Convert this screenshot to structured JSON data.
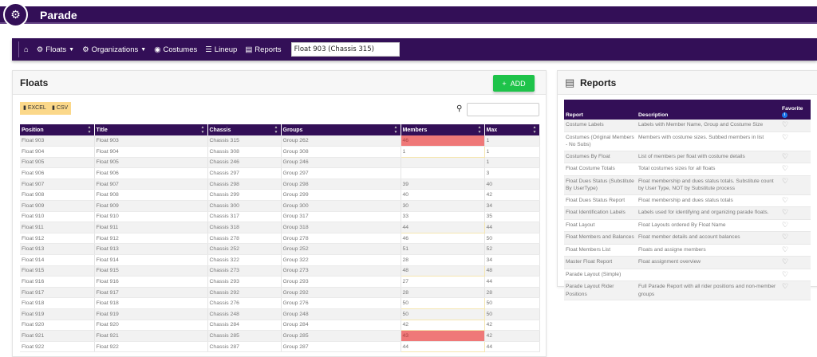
{
  "app": {
    "title": "Parade",
    "logo_icon": "tractor-icon",
    "brand_color": "#330f57"
  },
  "nav": {
    "items": [
      {
        "label": "",
        "icon": "home-icon"
      },
      {
        "label": "Floats",
        "icon": "tractor-icon",
        "dropdown": true
      },
      {
        "label": "Organizations",
        "icon": "tractor-icon",
        "dropdown": true
      },
      {
        "label": "Costumes",
        "icon": "mask-icon"
      },
      {
        "label": "Lineup",
        "icon": "list-icon"
      },
      {
        "label": "Reports",
        "icon": "report-icon"
      }
    ],
    "search_value": "Float 903 (Chassis 315)"
  },
  "floats": {
    "title": "Floats",
    "add_label": "ADD",
    "excel_label": "EXCEL",
    "csv_label": "CSV",
    "search_placeholder": "",
    "columns": [
      "Position",
      "Title",
      "Chassis",
      "Groups",
      "Members",
      "Max"
    ],
    "rows": [
      [
        "Float 903",
        "Float 903",
        "Chassis 315",
        "Group 262",
        "46",
        "1",
        "over"
      ],
      [
        "Float 904",
        "Float 904",
        "Chassis 308",
        "Group 308",
        "1",
        "1",
        "near"
      ],
      [
        "Float 905",
        "Float 905",
        "Chassis 246",
        "Group 246",
        "",
        "1",
        ""
      ],
      [
        "Float 906",
        "Float 906",
        "Chassis 297",
        "Group 297",
        "",
        "3",
        ""
      ],
      [
        "Float 907",
        "Float 907",
        "Chassis 298",
        "Group 298",
        "39",
        "40",
        ""
      ],
      [
        "Float 908",
        "Float 908",
        "Chassis 299",
        "Group 299",
        "40",
        "42",
        ""
      ],
      [
        "Float 909",
        "Float 909",
        "Chassis 300",
        "Group 300",
        "30",
        "34",
        ""
      ],
      [
        "Float 910",
        "Float 910",
        "Chassis 317",
        "Group 317",
        "33",
        "35",
        ""
      ],
      [
        "Float 911",
        "Float 911",
        "Chassis 318",
        "Group 318",
        "44",
        "44",
        "near"
      ],
      [
        "Float 912",
        "Float 912",
        "Chassis 278",
        "Group 278",
        "46",
        "50",
        ""
      ],
      [
        "Float 913",
        "Float 913",
        "Chassis 252",
        "Group 252",
        "51",
        "52",
        ""
      ],
      [
        "Float 914",
        "Float 914",
        "Chassis 322",
        "Group 322",
        "28",
        "34",
        ""
      ],
      [
        "Float 915",
        "Float 915",
        "Chassis 273",
        "Group 273",
        "48",
        "48",
        "near"
      ],
      [
        "Float 916",
        "Float 916",
        "Chassis 293",
        "Group 293",
        "27",
        "44",
        ""
      ],
      [
        "Float 917",
        "Float 917",
        "Chassis 292",
        "Group 292",
        "28",
        "28",
        ""
      ],
      [
        "Float 918",
        "Float 918",
        "Chassis 276",
        "Group 276",
        "50",
        "50",
        "near"
      ],
      [
        "Float 919",
        "Float 919",
        "Chassis 248",
        "Group 248",
        "50",
        "50",
        "near"
      ],
      [
        "Float 920",
        "Float 920",
        "Chassis 284",
        "Group 284",
        "42",
        "42",
        "near"
      ],
      [
        "Float 921",
        "Float 921",
        "Chassis 285",
        "Group 285",
        "43",
        "42",
        "over"
      ],
      [
        "Float 922",
        "Float 922",
        "Chassis 287",
        "Group 287",
        "44",
        "44",
        "near"
      ]
    ]
  },
  "reports": {
    "title": "Reports",
    "columns": [
      "Report",
      "Description",
      "Favorite"
    ],
    "rows": [
      [
        "Costume Labels",
        "Labels with Member Name, Group and Costume Size"
      ],
      [
        "Costumes (Original Members - No Subs)",
        "Members with costume sizes. Subbed members in list"
      ],
      [
        "Costumes By Float",
        "List of members per float with costume details"
      ],
      [
        "Float Costume Totals",
        "Total costumes sizes for all floats"
      ],
      [
        "Float Dues Status (Substitute By UserType)",
        "Float membership and dues status totals. Substitute count by User Type, NOT by Substitute process"
      ],
      [
        "Float Dues Status Report",
        "Float membership and dues status totals"
      ],
      [
        "Float Identification Labels",
        "Labels used for identifying and organizing parade floats."
      ],
      [
        "Float Layout",
        "Float Layouts ordered By Float Name"
      ],
      [
        "Float Members and Balances",
        "Float member details and account balances"
      ],
      [
        "Float Members List",
        "Floats and assigne members"
      ],
      [
        "Master Float Report",
        "Float assignment overview"
      ],
      [
        "Parade Layout (Simple)",
        ""
      ],
      [
        "Parade Layout Rider Positions",
        "Full Parade Report with all rider positions and non-member groups"
      ]
    ]
  }
}
